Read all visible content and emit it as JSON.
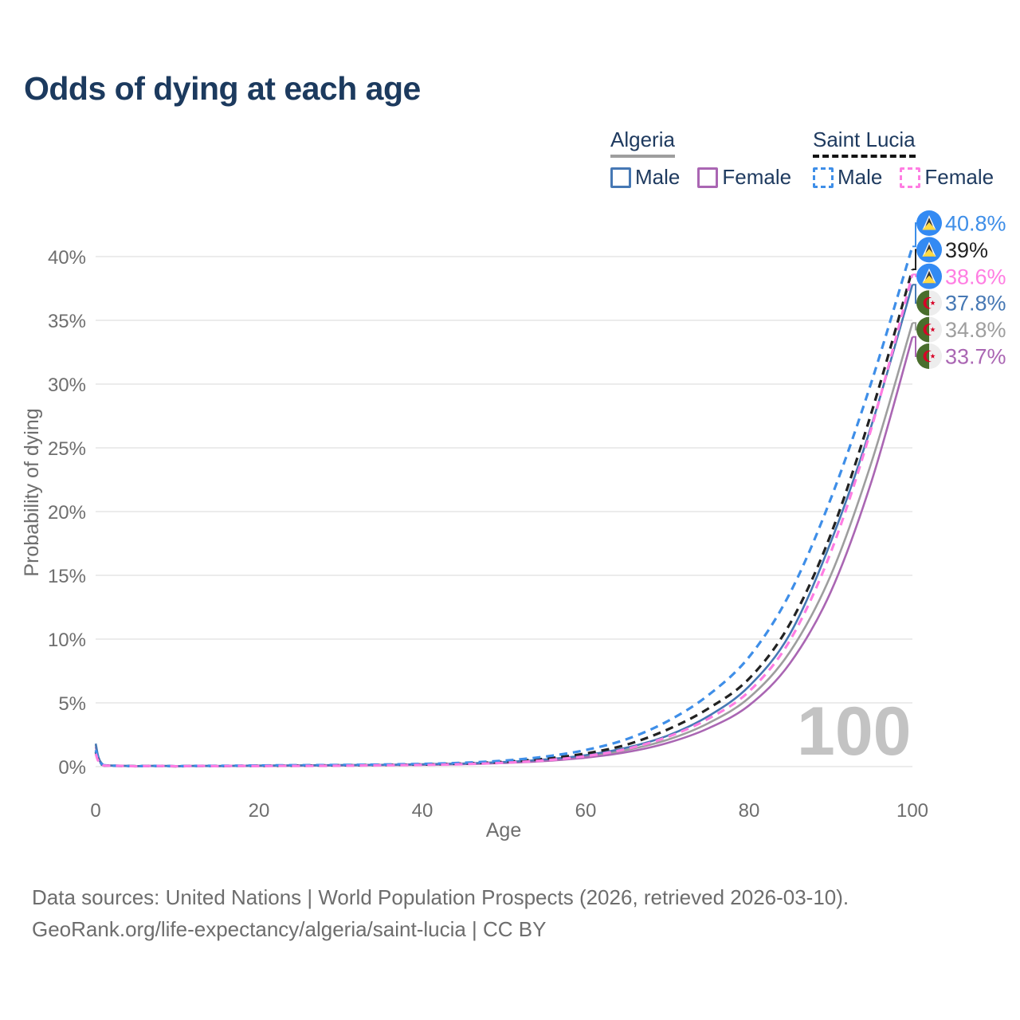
{
  "title": "Odds of dying at each age",
  "legend": {
    "groups": [
      {
        "label": "Algeria",
        "line_style": "solid",
        "underline_color": "#9e9e9e",
        "items": [
          {
            "label": "Male",
            "color": "#4678b4"
          },
          {
            "label": "Female",
            "color": "#aa66b3"
          }
        ]
      },
      {
        "label": "Saint Lucia",
        "line_style": "dashed",
        "underline_color": "#141414",
        "items": [
          {
            "label": "Male",
            "color": "#3e8ee8"
          },
          {
            "label": "Female",
            "color": "#ff7de2"
          }
        ]
      }
    ]
  },
  "axes": {
    "xlabel": "Age",
    "ylabel": "Probability of dying",
    "x_ticks": [
      "0",
      "20",
      "40",
      "60",
      "80",
      "100"
    ],
    "y_ticks": [
      "0%",
      "5%",
      "10%",
      "15%",
      "20%",
      "25%",
      "30%",
      "35%",
      "40%"
    ]
  },
  "watermark": {
    "text": "100"
  },
  "end_labels": [
    {
      "value": "40.8%",
      "color": "#3e8ee8",
      "flag": "saint-lucia"
    },
    {
      "value": "39%",
      "color": "#222222",
      "flag": "saint-lucia"
    },
    {
      "value": "38.6%",
      "color": "#ff7de2",
      "flag": "saint-lucia"
    },
    {
      "value": "37.8%",
      "color": "#4678b4",
      "flag": "algeria"
    },
    {
      "value": "34.8%",
      "color": "#9e9e9e",
      "flag": "algeria"
    },
    {
      "value": "33.7%",
      "color": "#aa66b3",
      "flag": "algeria"
    }
  ],
  "footer": {
    "line1": "Data sources: United Nations | World Population Prospects (2026, retrieved 2026-03-10).",
    "line2": "GeoRank.org/life-expectancy/algeria/saint-lucia | CC BY"
  },
  "chart_data": {
    "type": "line",
    "title": "Odds of dying at each age",
    "xlabel": "Age",
    "ylabel": "Probability of dying",
    "xlim": [
      0,
      100
    ],
    "ylim_percent": [
      0,
      42
    ],
    "grid": "horizontal",
    "legend_position": "top-right",
    "x_ages": [
      0,
      1,
      5,
      10,
      15,
      20,
      25,
      30,
      35,
      40,
      45,
      50,
      55,
      60,
      65,
      70,
      75,
      80,
      85,
      90,
      95,
      100
    ],
    "series": [
      {
        "name": "Saint Lucia Male",
        "country": "Saint Lucia",
        "sex": "male",
        "color": "#3e8ee8",
        "dashed": true,
        "end_value_percent": 40.8,
        "values_percent": [
          1.3,
          0.1,
          0.03,
          0.03,
          0.06,
          0.09,
          0.11,
          0.13,
          0.16,
          0.21,
          0.3,
          0.47,
          0.78,
          1.3,
          2.15,
          3.55,
          5.6,
          8.6,
          13.6,
          21.0,
          30.2,
          40.8
        ]
      },
      {
        "name": "Saint Lucia Both sexes",
        "country": "Saint Lucia",
        "sex": "both",
        "color": "#222222",
        "dashed": true,
        "end_value_percent": 39,
        "values_percent": [
          1.15,
          0.09,
          0.03,
          0.02,
          0.04,
          0.06,
          0.08,
          0.1,
          0.13,
          0.17,
          0.24,
          0.38,
          0.62,
          1.03,
          1.72,
          2.9,
          4.55,
          6.9,
          11.2,
          18.2,
          27.8,
          39.0
        ]
      },
      {
        "name": "Saint Lucia Female",
        "country": "Saint Lucia",
        "sex": "female",
        "color": "#ff7de2",
        "dashed": true,
        "end_value_percent": 38.6,
        "values_percent": [
          1.0,
          0.08,
          0.02,
          0.02,
          0.03,
          0.04,
          0.05,
          0.07,
          0.1,
          0.13,
          0.19,
          0.3,
          0.49,
          0.82,
          1.38,
          2.32,
          3.75,
          5.9,
          9.9,
          16.8,
          26.6,
          38.6
        ]
      },
      {
        "name": "Algeria Male",
        "country": "Algeria",
        "sex": "male",
        "color": "#4678b4",
        "dashed": false,
        "end_value_percent": 37.8,
        "values_percent": [
          1.8,
          0.12,
          0.04,
          0.03,
          0.05,
          0.08,
          0.1,
          0.12,
          0.14,
          0.18,
          0.24,
          0.36,
          0.56,
          0.9,
          1.48,
          2.42,
          3.95,
          6.3,
          10.4,
          17.6,
          26.8,
          37.8
        ]
      },
      {
        "name": "Algeria Both sexes",
        "country": "Algeria",
        "sex": "both",
        "color": "#9e9e9e",
        "dashed": false,
        "end_value_percent": 34.8,
        "values_percent": [
          1.7,
          0.11,
          0.04,
          0.03,
          0.04,
          0.06,
          0.08,
          0.1,
          0.12,
          0.16,
          0.21,
          0.32,
          0.5,
          0.8,
          1.3,
          2.1,
          3.4,
          5.4,
          9.0,
          15.0,
          23.9,
          34.8
        ]
      },
      {
        "name": "Algeria Female",
        "country": "Algeria",
        "sex": "female",
        "color": "#aa66b3",
        "dashed": false,
        "end_value_percent": 33.7,
        "values_percent": [
          1.55,
          0.1,
          0.03,
          0.02,
          0.03,
          0.05,
          0.07,
          0.09,
          0.11,
          0.14,
          0.19,
          0.28,
          0.44,
          0.7,
          1.13,
          1.85,
          3.0,
          4.8,
          8.1,
          13.7,
          22.4,
          33.7
        ]
      }
    ]
  }
}
